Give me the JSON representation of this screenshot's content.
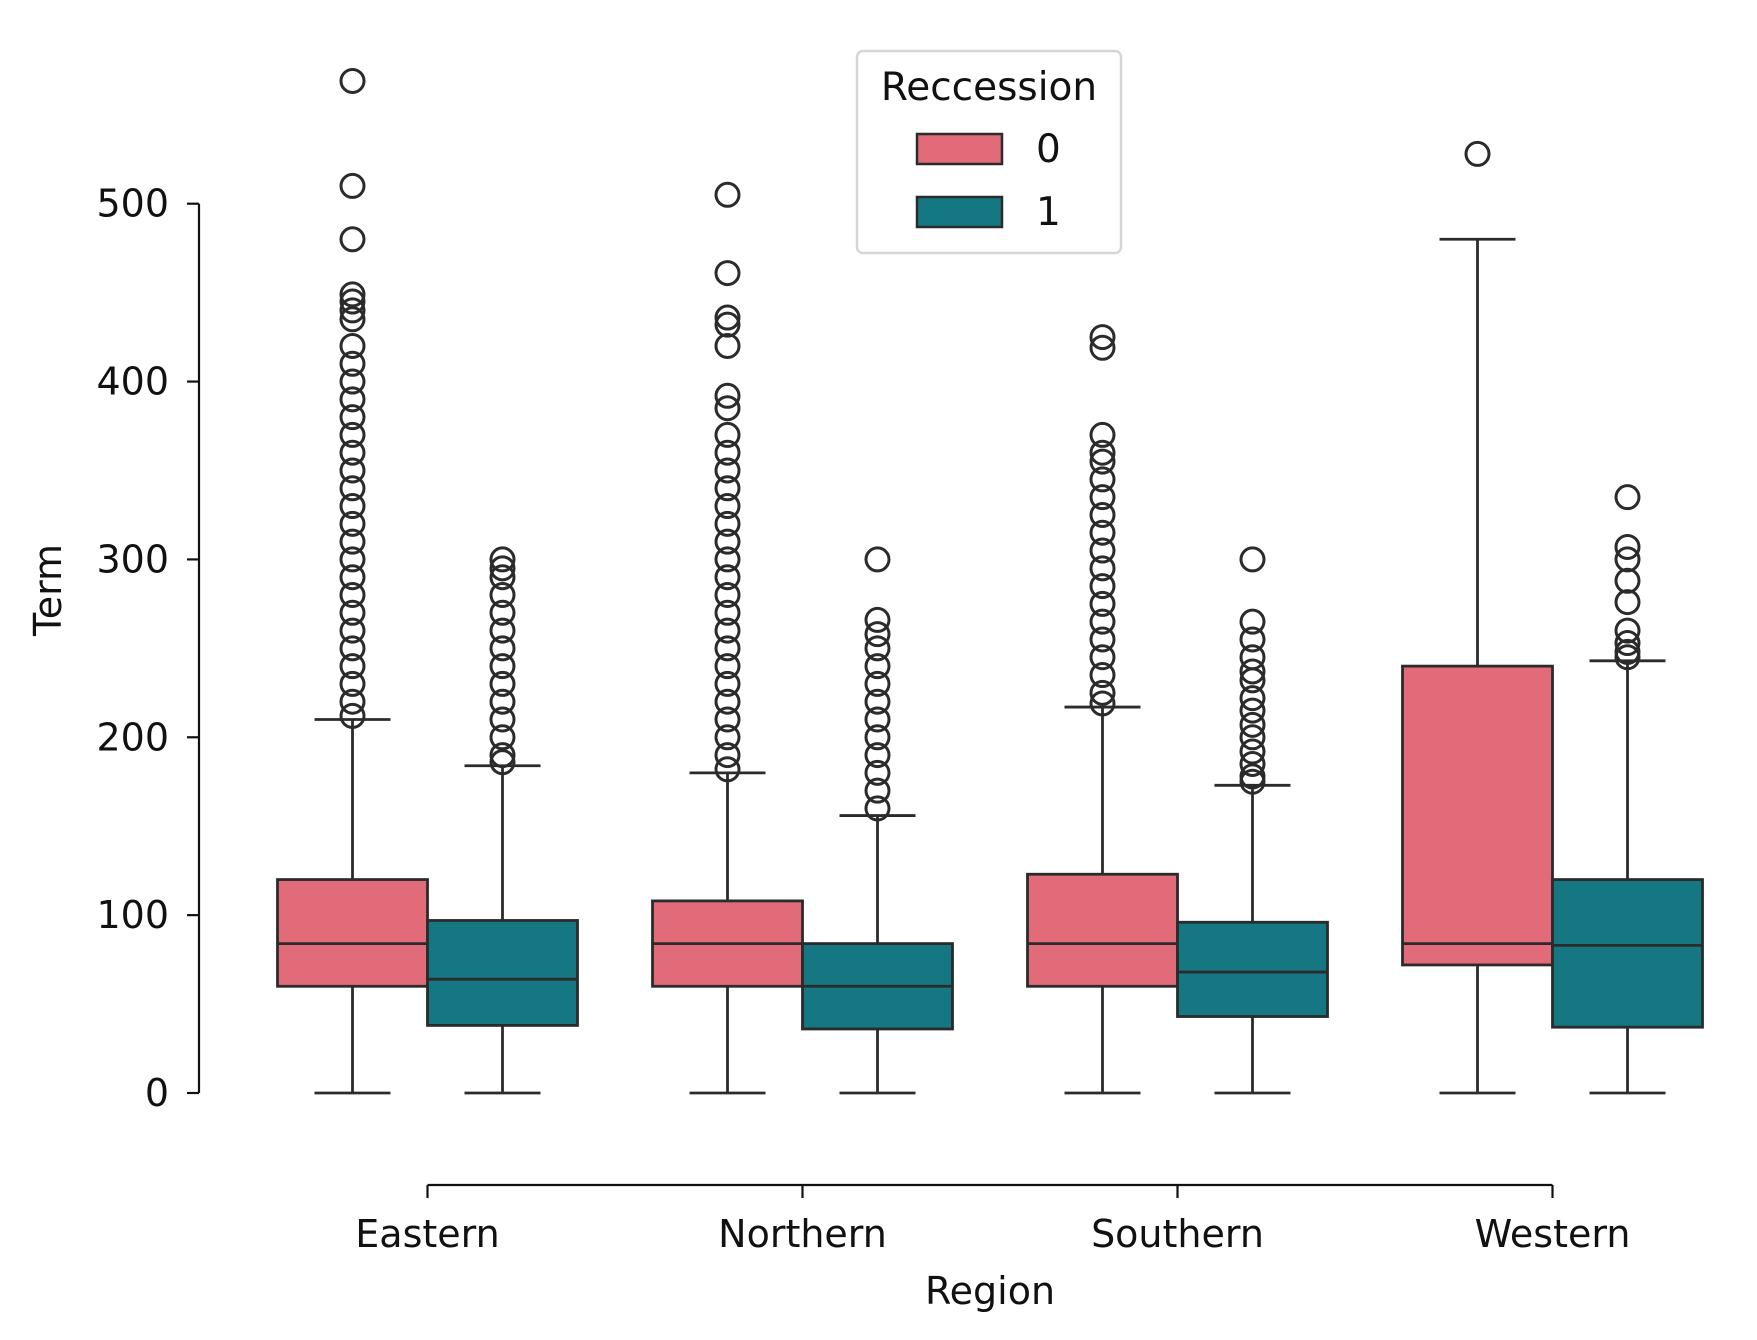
{
  "chart_data": {
    "type": "box",
    "xlabel": "Region",
    "ylabel": "Term",
    "ylim": [
      0,
      560
    ],
    "yticks": [
      0,
      100,
      200,
      300,
      400,
      500
    ],
    "categories": [
      "Eastern",
      "Northern",
      "Southern",
      "Western"
    ],
    "grid": false,
    "legend": {
      "title": "Reccession",
      "placement": "top-center",
      "entries": [
        {
          "label": "0",
          "color": "#e16b79"
        },
        {
          "label": "1",
          "color": "#147782"
        }
      ]
    },
    "series": [
      {
        "name": "0",
        "color": "#e16b79",
        "boxes": [
          {
            "category": "Eastern",
            "min": 0,
            "q1": 60,
            "median": 84,
            "q3": 120,
            "max": 210,
            "outliers": [
              569,
              510,
              480,
              449,
              445,
              440,
              435,
              420,
              410,
              400,
              390,
              380,
              370,
              360,
              350,
              340,
              330,
              320,
              310,
              300,
              290,
              280,
              270,
              260,
              250,
              240,
              230,
              220,
              212
            ]
          },
          {
            "category": "Northern",
            "min": 0,
            "q1": 60,
            "median": 84,
            "q3": 108,
            "max": 180,
            "outliers": [
              505,
              461,
              436,
              432,
              420,
              392,
              385,
              370,
              360,
              350,
              340,
              330,
              320,
              310,
              300,
              290,
              280,
              270,
              260,
              250,
              240,
              230,
              220,
              210,
              200,
              190,
              182
            ]
          },
          {
            "category": "Southern",
            "min": 0,
            "q1": 60,
            "median": 84,
            "q3": 123,
            "max": 217,
            "outliers": [
              425,
              419,
              370,
              360,
              355,
              345,
              335,
              325,
              315,
              305,
              295,
              285,
              275,
              265,
              255,
              245,
              235,
              225,
              219
            ]
          },
          {
            "category": "Western",
            "min": 0,
            "q1": 72,
            "median": 84,
            "q3": 240,
            "max": 480,
            "outliers": [
              528
            ]
          }
        ]
      },
      {
        "name": "1",
        "color": "#147782",
        "boxes": [
          {
            "category": "Eastern",
            "min": 0,
            "q1": 38,
            "median": 64,
            "q3": 97,
            "max": 184,
            "outliers": [
              300,
              295,
              290,
              280,
              270,
              260,
              250,
              240,
              230,
              220,
              210,
              200,
              190,
              186
            ]
          },
          {
            "category": "Northern",
            "min": 0,
            "q1": 36,
            "median": 60,
            "q3": 84,
            "max": 156,
            "outliers": [
              300,
              266,
              258,
              250,
              240,
              230,
              220,
              210,
              200,
              190,
              180,
              170,
              160
            ]
          },
          {
            "category": "Southern",
            "min": 0,
            "q1": 43,
            "median": 68,
            "q3": 96,
            "max": 173,
            "outliers": [
              300,
              265,
              255,
              245,
              237,
              232,
              222,
              215,
              207,
              200,
              192,
              185,
              178,
              175
            ]
          },
          {
            "category": "Western",
            "min": 0,
            "q1": 37,
            "median": 83,
            "q3": 120,
            "max": 243,
            "outliers": [
              335,
              307,
              300,
              288,
              276,
              260,
              253,
              248,
              245
            ]
          }
        ]
      }
    ]
  }
}
